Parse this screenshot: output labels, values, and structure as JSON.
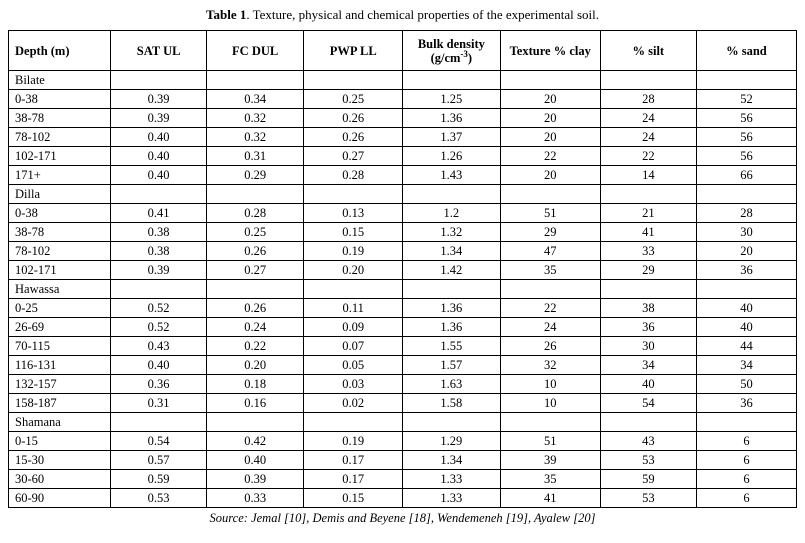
{
  "caption": {
    "label": "Table 1",
    "text": ". Texture, physical and chemical properties of the experimental soil."
  },
  "source": "Source: Jemal [10], Demis and Beyene [18], Wendemeneh [19], Ayalew [20]",
  "table": {
    "headers": [
      {
        "label": "Depth (m)",
        "align": "left"
      },
      {
        "label": "SAT UL"
      },
      {
        "label": "FC DUL"
      },
      {
        "label": "PWP LL"
      },
      {
        "line1": "Bulk density",
        "unit_pre": "(g/cm",
        "unit_sup": "-3",
        "unit_post": ")"
      },
      {
        "label": "Texture % clay"
      },
      {
        "label": "% silt"
      },
      {
        "label": "% sand"
      }
    ],
    "sections": [
      {
        "name": "Bilate",
        "rows": [
          [
            "0-38",
            "0.39",
            "0.34",
            "0.25",
            "1.25",
            "20",
            "28",
            "52"
          ],
          [
            "38-78",
            "0.39",
            "0.32",
            "0.26",
            "1.36",
            "20",
            "24",
            "56"
          ],
          [
            "78-102",
            "0.40",
            "0.32",
            "0.26",
            "1.37",
            "20",
            "24",
            "56"
          ],
          [
            "102-171",
            "0.40",
            "0.31",
            "0.27",
            "1.26",
            "22",
            "22",
            "56"
          ],
          [
            "171+",
            "0.40",
            "0.29",
            "0.28",
            "1.43",
            "20",
            "14",
            "66"
          ]
        ]
      },
      {
        "name": "Dilla",
        "rows": [
          [
            "0-38",
            "0.41",
            "0.28",
            "0.13",
            "1.2",
            "51",
            "21",
            "28"
          ],
          [
            "38-78",
            "0.38",
            "0.25",
            "0.15",
            "1.32",
            "29",
            "41",
            "30"
          ],
          [
            "78-102",
            "0.38",
            "0.26",
            "0.19",
            "1.34",
            "47",
            "33",
            "20"
          ],
          [
            "102-171",
            "0.39",
            "0.27",
            "0.20",
            "1.42",
            "35",
            "29",
            "36"
          ]
        ]
      },
      {
        "name": "Hawassa",
        "rows": [
          [
            "0-25",
            "0.52",
            "0.26",
            "0.11",
            "1.36",
            "22",
            "38",
            "40"
          ],
          [
            "26-69",
            "0.52",
            "0.24",
            "0.09",
            "1.36",
            "24",
            "36",
            "40"
          ],
          [
            "70-115",
            "0.43",
            "0.22",
            "0.07",
            "1.55",
            "26",
            "30",
            "44"
          ],
          [
            "116-131",
            "0.40",
            "0.20",
            "0.05",
            "1.57",
            "32",
            "34",
            "34"
          ],
          [
            "132-157",
            "0.36",
            "0.18",
            "0.03",
            "1.63",
            "10",
            "40",
            "50"
          ],
          [
            "158-187",
            "0.31",
            "0.16",
            "0.02",
            "1.58",
            "10",
            "54",
            "36"
          ]
        ]
      },
      {
        "name": "Shamana",
        "rows": [
          [
            "0-15",
            "0.54",
            "0.42",
            "0.19",
            "1.29",
            "51",
            "43",
            "6"
          ],
          [
            "15-30",
            "0.57",
            "0.40",
            "0.17",
            "1.34",
            "39",
            "53",
            "6"
          ],
          [
            "30-60",
            "0.59",
            "0.39",
            "0.17",
            "1.33",
            "35",
            "59",
            "6"
          ],
          [
            "60-90",
            "0.53",
            "0.33",
            "0.15",
            "1.33",
            "41",
            "53",
            "6"
          ]
        ]
      }
    ]
  }
}
